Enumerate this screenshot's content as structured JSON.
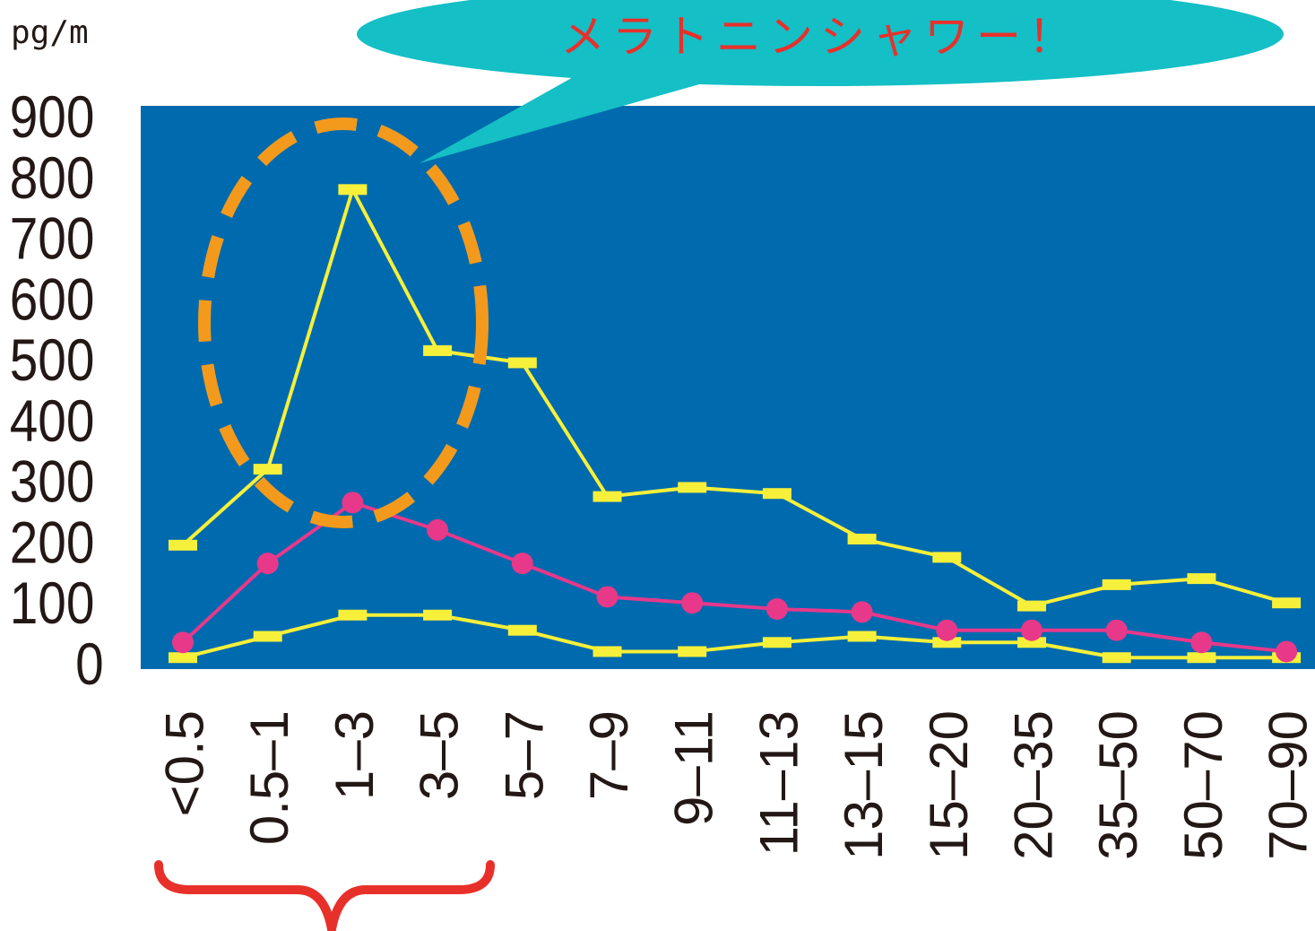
{
  "chart_data": {
    "type": "line",
    "ylabel": "pg/m",
    "ylim": [
      0,
      900
    ],
    "yticks": [
      "900",
      "800",
      "700",
      "600",
      "500",
      "400",
      "300",
      "200",
      "100",
      "0"
    ],
    "categories": [
      "<0.5",
      "0.5–1",
      "1–3",
      "3–5",
      "5–7",
      "7–9",
      "9–11",
      "11–13",
      "13–15",
      "15–20",
      "20–35",
      "35–50",
      "50–70",
      "70–90"
    ],
    "series": [
      {
        "marker": "bar",
        "color": "#f7f03a",
        "values": [
          195,
          320,
          780,
          515,
          495,
          275,
          290,
          280,
          205,
          175,
          95,
          130,
          140,
          100
        ]
      },
      {
        "marker": "circle",
        "color": "#e8388a",
        "values": [
          35,
          165,
          265,
          220,
          165,
          110,
          100,
          90,
          85,
          55,
          55,
          55,
          35,
          20
        ]
      },
      {
        "marker": "bar",
        "color": "#f7f03a",
        "values": [
          10,
          45,
          80,
          80,
          55,
          20,
          20,
          35,
          45,
          35,
          35,
          10,
          10,
          10
        ]
      }
    ],
    "grid": false,
    "plot_background": "#006aae",
    "annotations": [
      {
        "type": "callout",
        "text": "メラトニンシャワー！",
        "color": "#e8302a",
        "bubble_color": "#14bfc5"
      },
      {
        "type": "dashed-ellipse",
        "color": "#f39a1d",
        "target_categories": [
          "0.5–1",
          "1–3",
          "3–5"
        ]
      },
      {
        "type": "brace",
        "color": "#e8302a",
        "target_categories": [
          "<0.5",
          "0.5–1",
          "1–3",
          "3–5"
        ]
      }
    ]
  }
}
